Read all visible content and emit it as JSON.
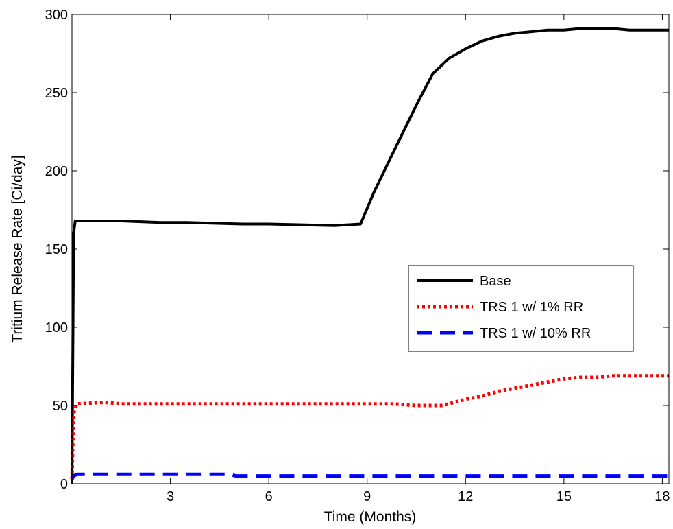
{
  "chart_data": {
    "type": "line",
    "title": "",
    "xlabel": "Time (Months)",
    "ylabel": "Tritium Release Rate [Ci/day]",
    "xlim": [
      0,
      18.2
    ],
    "ylim": [
      0,
      300
    ],
    "x_ticks": [
      3,
      6,
      9,
      12,
      15,
      18
    ],
    "y_ticks": [
      0,
      50,
      100,
      150,
      200,
      250,
      300
    ],
    "grid": false,
    "legend_position": "right-middle",
    "series": [
      {
        "name": "Base",
        "color": "#000000",
        "style": "solid",
        "x": [
          0,
          0.05,
          0.1,
          1.5,
          2.7,
          3.5,
          5.2,
          6.0,
          8.0,
          8.8,
          9.2,
          9.8,
          10.5,
          11.0,
          11.5,
          12.0,
          12.5,
          13.0,
          13.5,
          14.0,
          14.5,
          15.0,
          15.5,
          16.0,
          16.5,
          17.0,
          17.5,
          18.2
        ],
        "values": [
          0,
          160,
          168,
          168,
          167,
          167,
          166,
          166,
          165,
          166,
          186,
          212,
          242,
          262,
          272,
          278,
          283,
          286,
          288,
          289,
          290,
          290,
          291,
          291,
          291,
          290,
          290,
          290
        ]
      },
      {
        "name": "TRS 1 w/ 1% RR",
        "color": "#ff0000",
        "style": "dotted",
        "x": [
          0,
          0.05,
          0.15,
          1.0,
          1.5,
          3.0,
          6.0,
          9.0,
          9.8,
          10.5,
          11.3,
          12.0,
          12.5,
          13.0,
          13.5,
          14.0,
          14.5,
          15.0,
          15.5,
          16.0,
          16.5,
          17.0,
          17.5,
          18.2
        ],
        "values": [
          3,
          45,
          51,
          52,
          51,
          51,
          51,
          51,
          51,
          50,
          50,
          54,
          56,
          59,
          61,
          63,
          65,
          67,
          68,
          68,
          69,
          69,
          69,
          69
        ]
      },
      {
        "name": "TRS 1 w/ 10% RR",
        "color": "#0000ff",
        "style": "dashed",
        "x": [
          0,
          0.05,
          0.15,
          1.0,
          2.7,
          4.8,
          5.0,
          9.0,
          12.0,
          15.0,
          18.2
        ],
        "values": [
          3,
          5,
          6,
          6,
          6,
          6,
          5,
          5,
          5,
          5,
          5
        ]
      }
    ]
  }
}
